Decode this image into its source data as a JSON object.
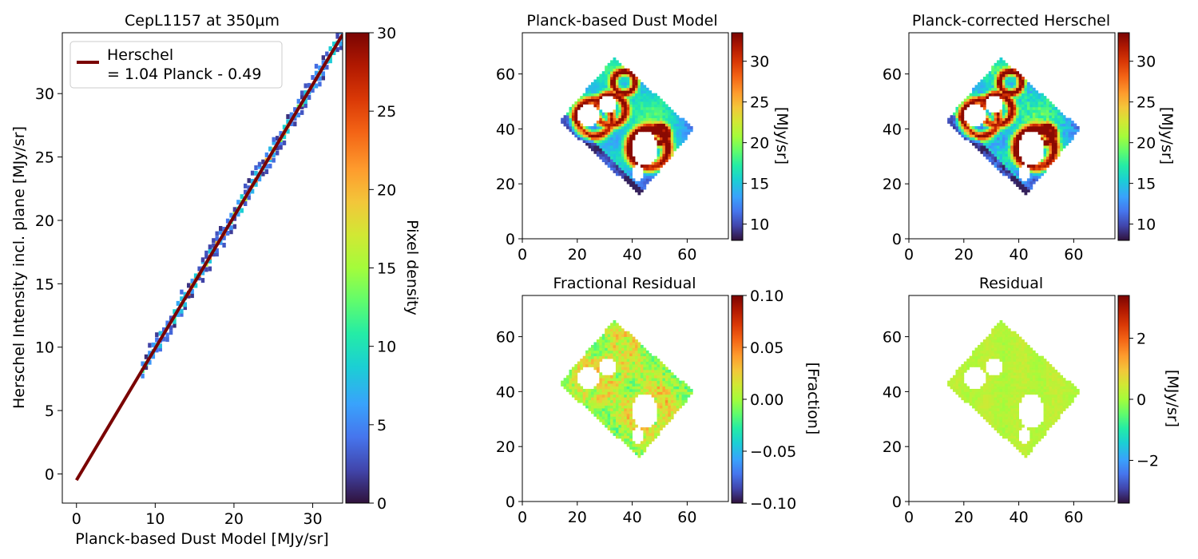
{
  "colors": {
    "fit_line": "#7a0403",
    "map_fill_low": "#30123b",
    "map_fill_mid": "#2ab0e8",
    "map_fill_high": "#7a0403",
    "colormap": "turbo"
  },
  "chart_data": [
    {
      "id": "density",
      "type": "heatmap",
      "title": "CepL1157 at 350μm",
      "xlabel": "Planck-based Dust Model [MJy/sr]",
      "ylabel": "Herschel Intensity incl. plane [MJy/sr]",
      "xlim": [
        -1.8,
        33.8
      ],
      "ylim": [
        -2.3,
        34.8
      ],
      "xticks": [
        0,
        10,
        20,
        30
      ],
      "yticks": [
        0,
        5,
        10,
        15,
        20,
        25,
        30
      ],
      "legend": {
        "position": "top-left",
        "entries": [
          {
            "label_line1": "Herschel",
            "label_line2": "= 1.04 Planck - 0.49"
          }
        ]
      },
      "fit": {
        "slope": 1.04,
        "intercept": -0.49,
        "x_range": [
          0,
          33.8
        ]
      },
      "density_points": {
        "x_range": [
          8.4,
          33.7
        ],
        "step": 0.45,
        "peak_density": 28
      },
      "colorbar": {
        "label": "Pixel density",
        "range": [
          0,
          30
        ],
        "ticks": [
          0,
          5,
          10,
          15,
          20,
          25,
          30
        ]
      }
    },
    {
      "id": "dust-model",
      "type": "heatmap",
      "title": "Planck-based Dust Model",
      "xlim": [
        0,
        75
      ],
      "ylim": [
        0,
        75
      ],
      "xticks": [
        0,
        20,
        40,
        60
      ],
      "yticks": [
        0,
        20,
        40,
        60
      ],
      "map": "model",
      "colorbar": {
        "label": "[MJy/sr]",
        "range": [
          8,
          33.5
        ],
        "ticks": [
          10,
          15,
          20,
          25,
          30
        ]
      }
    },
    {
      "id": "corrected-herschel",
      "type": "heatmap",
      "title": "Planck-corrected Herschel",
      "xlim": [
        0,
        75
      ],
      "ylim": [
        0,
        75
      ],
      "xticks": [
        0,
        20,
        40,
        60
      ],
      "yticks": [
        0,
        20,
        40,
        60
      ],
      "map": "herschel",
      "colorbar": {
        "label": "[MJy/sr]",
        "range": [
          8,
          33.5
        ],
        "ticks": [
          10,
          15,
          20,
          25,
          30
        ]
      }
    },
    {
      "id": "fractional-residual",
      "type": "heatmap",
      "title": "Fractional Residual",
      "xlim": [
        0,
        75
      ],
      "ylim": [
        0,
        75
      ],
      "xticks": [
        0,
        20,
        40,
        60
      ],
      "yticks": [
        0,
        20,
        40,
        60
      ],
      "map": "fraction",
      "colorbar": {
        "label": "[Fraction]",
        "range": [
          -0.1,
          0.1
        ],
        "ticks": [
          -0.1,
          -0.05,
          0.0,
          0.05,
          0.1
        ],
        "tick_labels": [
          "−0.10",
          "−0.05",
          "0.00",
          "0.05",
          "0.10"
        ]
      }
    },
    {
      "id": "residual",
      "type": "heatmap",
      "title": "Residual",
      "xlim": [
        0,
        75
      ],
      "ylim": [
        0,
        75
      ],
      "xticks": [
        0,
        20,
        40,
        60
      ],
      "yticks": [
        0,
        20,
        40,
        60
      ],
      "map": "residual",
      "colorbar": {
        "label": "[MJy/sr]",
        "range": [
          -3.4,
          3.4
        ],
        "ticks": [
          -2,
          0,
          2
        ],
        "tick_labels": [
          "−2",
          "0",
          "2"
        ]
      }
    }
  ]
}
